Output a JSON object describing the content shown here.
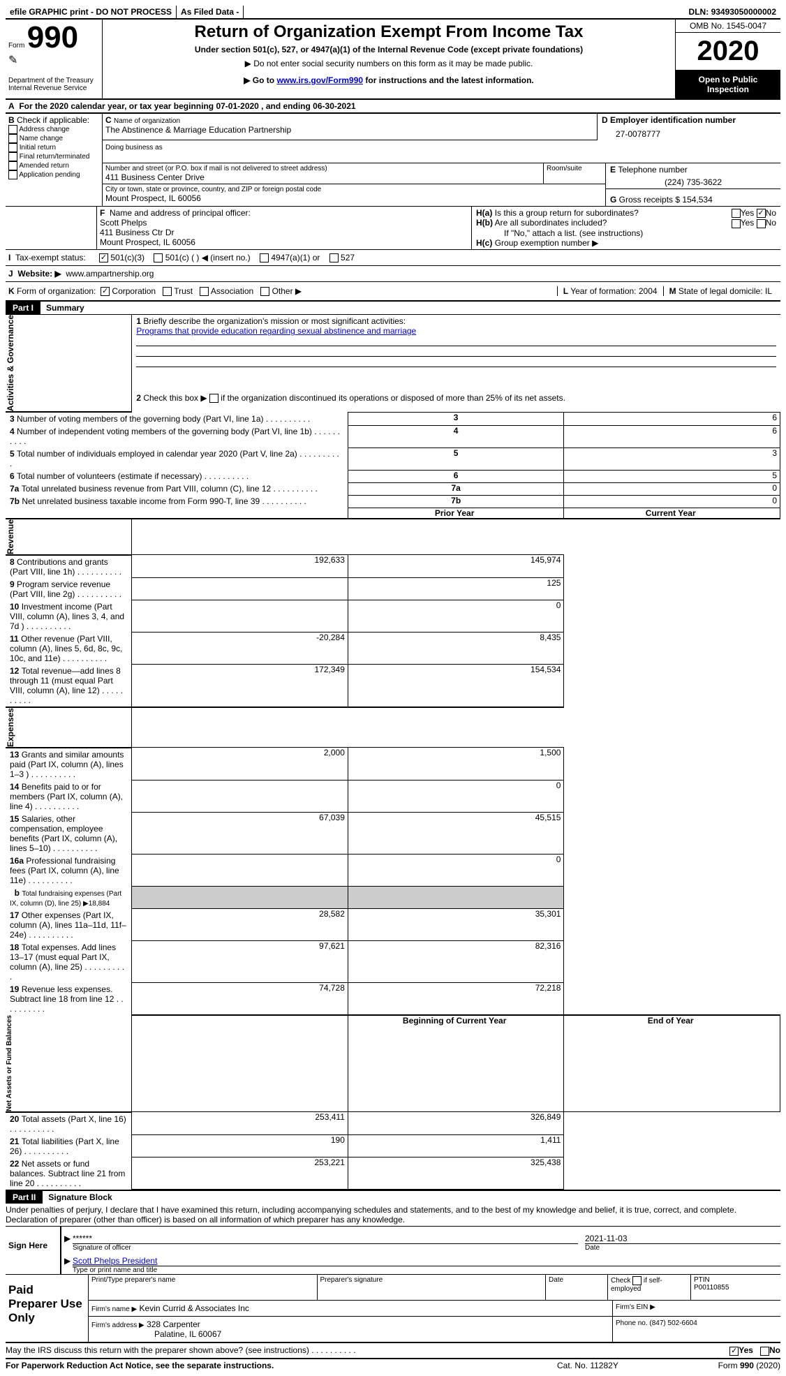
{
  "topbar": {
    "efile": "efile GRAPHIC print - DO NOT PROCESS",
    "asfiled": "As Filed Data -",
    "dln_label": "DLN:",
    "dln": "93493050000002"
  },
  "header": {
    "form_label": "Form",
    "form_no": "990",
    "dept": "Department of the Treasury",
    "irs": "Internal Revenue Service",
    "title": "Return of Organization Exempt From Income Tax",
    "subtitle": "Under section 501(c), 527, or 4947(a)(1) of the Internal Revenue Code (except private foundations)",
    "note1": "▶ Do not enter social security numbers on this form as it may be made public.",
    "note2_pre": "▶ Go to ",
    "note2_link": "www.irs.gov/Form990",
    "note2_post": " for instructions and the latest information.",
    "omb": "OMB No. 1545-0047",
    "year": "2020",
    "inspect": "Open to Public Inspection"
  },
  "A": {
    "line": "For the 2020 calendar year, or tax year beginning 07-01-2020  , and ending 06-30-2021"
  },
  "B": {
    "label": "Check if applicable:",
    "opts": [
      "Address change",
      "Name change",
      "Initial return",
      "Final return/terminated",
      "Amended return",
      "Application pending"
    ]
  },
  "C": {
    "label": "Name of organization",
    "name": "The Abstinence & Marriage Education Partnership",
    "dba_label": "Doing business as",
    "street_label": "Number and street (or P.O. box if mail is not delivered to street address)",
    "street": "411 Business Center Drive",
    "room_label": "Room/suite",
    "city_label": "City or town, state or province, country, and ZIP or foreign postal code",
    "city": "Mount Prospect, IL  60056"
  },
  "D": {
    "label": "Employer identification number",
    "val": "27-0078777"
  },
  "E": {
    "label": "Telephone number",
    "val": "(224) 735-3622"
  },
  "G": {
    "label": "Gross receipts $",
    "val": "154,534"
  },
  "F": {
    "label": "Name and address of principal officer:",
    "name": "Scott Phelps",
    "addr1": "411 Business Ctr Dr",
    "addr2": "Mount Prospect, IL  60056"
  },
  "H": {
    "a": "Is this a group return for subordinates?",
    "b": "Are all subordinates included?",
    "b_note": "If \"No,\" attach a list. (see instructions)",
    "c": "Group exemption number ▶",
    "yes": "Yes",
    "no": "No"
  },
  "I": {
    "label": "Tax-exempt status:",
    "o1": "501(c)(3)",
    "o2": "501(c) (   ) ◀ (insert no.)",
    "o3": "4947(a)(1) or",
    "o4": "527"
  },
  "J": {
    "label": "Website: ▶",
    "val": "www.ampartnership.org"
  },
  "K": {
    "label": "Form of organization:",
    "o1": "Corporation",
    "o2": "Trust",
    "o3": "Association",
    "o4": "Other ▶"
  },
  "L": {
    "label": "Year of formation:",
    "val": "2004"
  },
  "M": {
    "label": "State of legal domicile:",
    "val": "IL"
  },
  "partI": {
    "hdr": "Part I",
    "title": "Summary",
    "q1": "Briefly describe the organization's mission or most significant activities:",
    "mission": "Programs that provide education regarding sexual abstinence and marriage",
    "q2": "Check this box ▶    if the organization discontinued its operations or disposed of more than 25% of its net assets.",
    "prior": "Prior Year",
    "current": "Current Year",
    "begin": "Beginning of Current Year",
    "end": "End of Year",
    "sideA": "Activities & Governance",
    "sideR": "Revenue",
    "sideE": "Expenses",
    "sideN": "Net Assets or Fund Balances",
    "gov": [
      {
        "n": "3",
        "t": "Number of voting members of the governing body (Part VI, line 1a)",
        "v": "6"
      },
      {
        "n": "4",
        "t": "Number of independent voting members of the governing body (Part VI, line 1b)",
        "v": "6"
      },
      {
        "n": "5",
        "t": "Total number of individuals employed in calendar year 2020 (Part V, line 2a)",
        "v": "3"
      },
      {
        "n": "6",
        "t": "Total number of volunteers (estimate if necessary)",
        "v": "5"
      },
      {
        "n": "7a",
        "t": "Total unrelated business revenue from Part VIII, column (C), line 12",
        "v": "0"
      },
      {
        "n": "7b",
        "t": "Net unrelated business taxable income from Form 990-T, line 39",
        "v": "0"
      }
    ],
    "rev": [
      {
        "n": "8",
        "t": "Contributions and grants (Part VIII, line 1h)",
        "p": "192,633",
        "c": "145,974"
      },
      {
        "n": "9",
        "t": "Program service revenue (Part VIII, line 2g)",
        "p": "",
        "c": "125"
      },
      {
        "n": "10",
        "t": "Investment income (Part VIII, column (A), lines 3, 4, and 7d )",
        "p": "",
        "c": "0"
      },
      {
        "n": "11",
        "t": "Other revenue (Part VIII, column (A), lines 5, 6d, 8c, 9c, 10c, and 11e)",
        "p": "-20,284",
        "c": "8,435"
      },
      {
        "n": "12",
        "t": "Total revenue—add lines 8 through 11 (must equal Part VIII, column (A), line 12)",
        "p": "172,349",
        "c": "154,534"
      }
    ],
    "exp": [
      {
        "n": "13",
        "t": "Grants and similar amounts paid (Part IX, column (A), lines 1–3 )",
        "p": "2,000",
        "c": "1,500"
      },
      {
        "n": "14",
        "t": "Benefits paid to or for members (Part IX, column (A), line 4)",
        "p": "",
        "c": "0"
      },
      {
        "n": "15",
        "t": "Salaries, other compensation, employee benefits (Part IX, column (A), lines 5–10)",
        "p": "67,039",
        "c": "45,515"
      },
      {
        "n": "16a",
        "t": "Professional fundraising fees (Part IX, column (A), line 11e)",
        "p": "",
        "c": "0"
      },
      {
        "n": "b",
        "t": "Total fundraising expenses (Part IX, column (D), line 25) ▶18,884",
        "p": "–",
        "c": "–"
      },
      {
        "n": "17",
        "t": "Other expenses (Part IX, column (A), lines 11a–11d, 11f–24e)",
        "p": "28,582",
        "c": "35,301"
      },
      {
        "n": "18",
        "t": "Total expenses. Add lines 13–17 (must equal Part IX, column (A), line 25)",
        "p": "97,621",
        "c": "82,316"
      },
      {
        "n": "19",
        "t": "Revenue less expenses. Subtract line 18 from line 12",
        "p": "74,728",
        "c": "72,218"
      }
    ],
    "net": [
      {
        "n": "20",
        "t": "Total assets (Part X, line 16)",
        "p": "253,411",
        "c": "326,849"
      },
      {
        "n": "21",
        "t": "Total liabilities (Part X, line 26)",
        "p": "190",
        "c": "1,411"
      },
      {
        "n": "22",
        "t": "Net assets or fund balances. Subtract line 21 from line 20",
        "p": "253,221",
        "c": "325,438"
      }
    ]
  },
  "partII": {
    "hdr": "Part II",
    "title": "Signature Block",
    "decl": "Under penalties of perjury, I declare that I have examined this return, including accompanying schedules and statements, and to the best of my knowledge and belief, it is true, correct, and complete. Declaration of preparer (other than officer) is based on all information of which preparer has any knowledge."
  },
  "sign": {
    "here": "Sign Here",
    "stars": "******",
    "sig_label": "Signature of officer",
    "date": "2021-11-03",
    "date_label": "Date",
    "name": "Scott Phelps  President",
    "name_label": "Type or print name and title"
  },
  "paid": {
    "label": "Paid Preparer Use Only",
    "c1": "Print/Type preparer's name",
    "c2": "Preparer's signature",
    "c3": "Date",
    "c4a": "Check",
    "c4b": "if self-employed",
    "c5": "PTIN",
    "ptin": "P00110855",
    "firm_label": "Firm's name   ▶",
    "firm": "Kevin Currid & Associates Inc",
    "ein_label": "Firm's EIN ▶",
    "addr_label": "Firm's address ▶",
    "addr1": "328 Carpenter",
    "addr2": "Palatine, IL  60067",
    "phone_label": "Phone no.",
    "phone": "(847) 502-6604"
  },
  "footer": {
    "discuss": "May the IRS discuss this return with the preparer shown above? (see instructions)",
    "yes": "Yes",
    "no": "No",
    "pra": "For Paperwork Reduction Act Notice, see the separate instructions.",
    "cat": "Cat. No. 11282Y",
    "form": "Form 990 (2020)"
  }
}
